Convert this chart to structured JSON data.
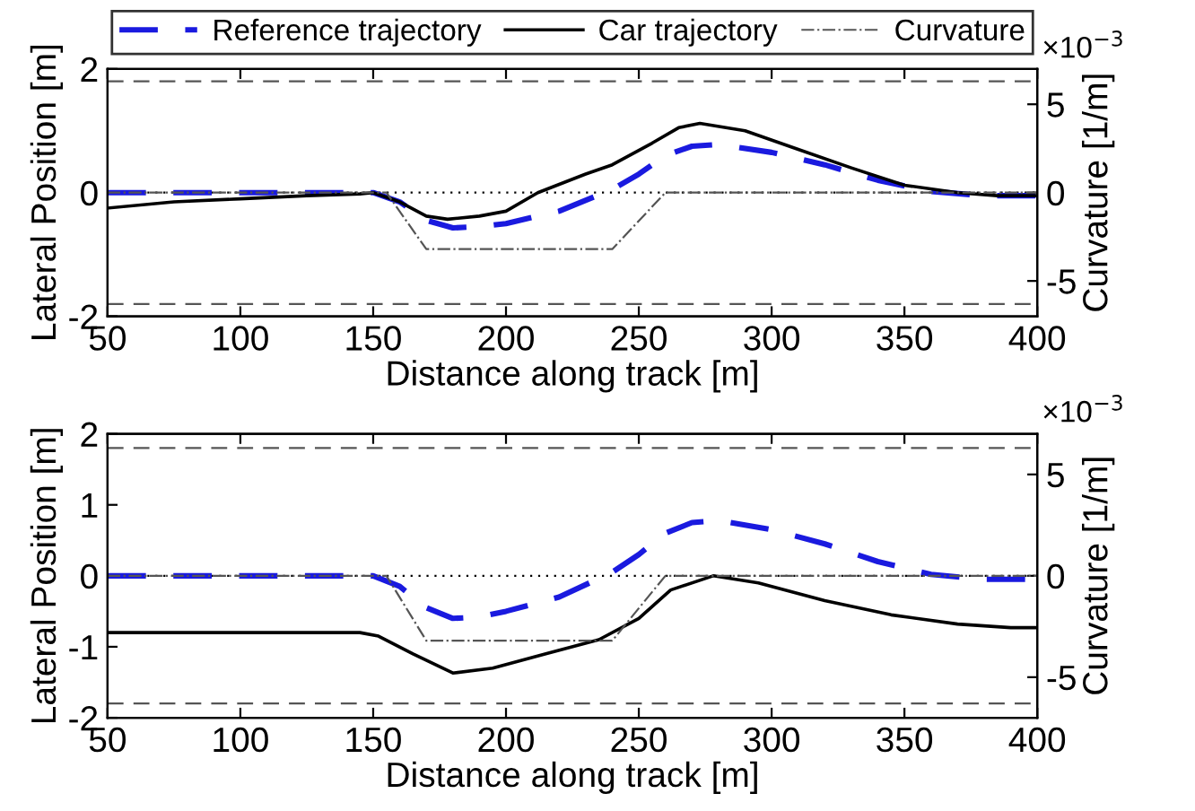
{
  "chart_data": [
    {
      "type": "line",
      "xlabel": "Distance along track [m]",
      "ylabel": "Lateral Position [m]",
      "y2label": "Curvature [1/m]",
      "annotations": [
        "×10$^{−3}$"
      ],
      "xlim": [
        50,
        400
      ],
      "xticks": [
        50,
        100,
        150,
        200,
        250,
        300,
        350,
        400
      ],
      "ylim": [
        -2,
        2
      ],
      "yticks": [
        -2,
        0,
        2
      ],
      "y2lim": [
        -7,
        7
      ],
      "y2ticks": [
        -5,
        0,
        5
      ],
      "legend": "top",
      "grid": false,
      "ref_lines": [
        {
          "axis": "y",
          "value": 1.8,
          "color": "#555555",
          "line_style": "dashed"
        },
        {
          "axis": "y",
          "value": -1.8,
          "color": "#555555",
          "line_style": "dashed"
        },
        {
          "axis": "y",
          "value": 0,
          "color": "#000000",
          "line_style": "dotted"
        }
      ],
      "series": [
        {
          "name": "Reference trajectory",
          "color": "#1a1adf",
          "line_style": "dashed",
          "x": [
            50,
            100,
            150,
            160,
            170,
            180,
            190,
            200,
            220,
            240,
            250,
            260,
            270,
            280,
            300,
            320,
            340,
            360,
            380,
            400
          ],
          "values": [
            0,
            0,
            0,
            -0.15,
            -0.45,
            -0.57,
            -0.55,
            -0.5,
            -0.3,
            0.05,
            0.3,
            0.6,
            0.75,
            0.78,
            0.65,
            0.45,
            0.2,
            0.02,
            -0.05,
            -0.05
          ]
        },
        {
          "name": "Car trajectory",
          "color": "#000000",
          "line_style": "solid",
          "x": [
            50,
            75,
            100,
            125,
            145,
            150,
            160,
            170,
            178,
            190,
            200,
            212,
            230,
            240,
            255,
            265,
            273,
            290,
            310,
            330,
            350,
            370,
            385,
            400
          ],
          "values": [
            -0.25,
            -0.15,
            -0.1,
            -0.05,
            -0.02,
            0,
            -0.15,
            -0.38,
            -0.43,
            -0.38,
            -0.3,
            0,
            0.3,
            0.45,
            0.8,
            1.05,
            1.12,
            1.0,
            0.7,
            0.4,
            0.12,
            0,
            -0.05,
            -0.05
          ]
        },
        {
          "name": "Curvature",
          "color": "#555555",
          "line_style": "dashdot",
          "axis": "y2",
          "x": [
            50,
            155,
            170,
            240,
            260,
            400
          ],
          "values": [
            0,
            0,
            -3.2,
            -3.2,
            0,
            0
          ]
        }
      ]
    },
    {
      "type": "line",
      "xlabel": "Distance along track [m]",
      "ylabel": "Lateral Position [m]",
      "y2label": "Curvature [1/m]",
      "annotations": [
        "×10$^{−3}$"
      ],
      "xlim": [
        50,
        400
      ],
      "xticks": [
        50,
        100,
        150,
        200,
        250,
        300,
        350,
        400
      ],
      "ylim": [
        -2,
        2
      ],
      "yticks": [
        -2,
        -1,
        0,
        1,
        2
      ],
      "y2lim": [
        -7,
        7
      ],
      "y2ticks": [
        -5,
        0,
        5
      ],
      "legend": false,
      "grid": false,
      "ref_lines": [
        {
          "axis": "y",
          "value": 1.8,
          "color": "#555555",
          "line_style": "dashed"
        },
        {
          "axis": "y",
          "value": -1.8,
          "color": "#555555",
          "line_style": "dashed"
        },
        {
          "axis": "y",
          "value": 0,
          "color": "#000000",
          "line_style": "dotted"
        }
      ],
      "series": [
        {
          "color": "#1a1adf",
          "line_style": "dashed",
          "x": [
            50,
            100,
            150,
            160,
            170,
            180,
            190,
            200,
            220,
            240,
            250,
            260,
            270,
            280,
            300,
            320,
            340,
            360,
            380,
            400
          ],
          "values": [
            0,
            0,
            0,
            -0.15,
            -0.45,
            -0.6,
            -0.58,
            -0.5,
            -0.3,
            0.05,
            0.3,
            0.6,
            0.75,
            0.78,
            0.65,
            0.45,
            0.2,
            0.02,
            -0.05,
            -0.05
          ]
        },
        {
          "color": "#000000",
          "line_style": "solid",
          "x": [
            50,
            100,
            145,
            152,
            165,
            180,
            195,
            215,
            235,
            250,
            262,
            278,
            295,
            320,
            345,
            370,
            390,
            400
          ],
          "values": [
            -0.8,
            -0.8,
            -0.8,
            -0.85,
            -1.1,
            -1.37,
            -1.3,
            -1.1,
            -0.9,
            -0.6,
            -0.2,
            0,
            -0.1,
            -0.35,
            -0.55,
            -0.68,
            -0.73,
            -0.73
          ]
        },
        {
          "color": "#555555",
          "line_style": "dashdot",
          "axis": "y2",
          "x": [
            50,
            155,
            170,
            240,
            260,
            400
          ],
          "values": [
            0,
            0,
            -3.2,
            -3.2,
            0,
            0
          ]
        }
      ]
    }
  ]
}
